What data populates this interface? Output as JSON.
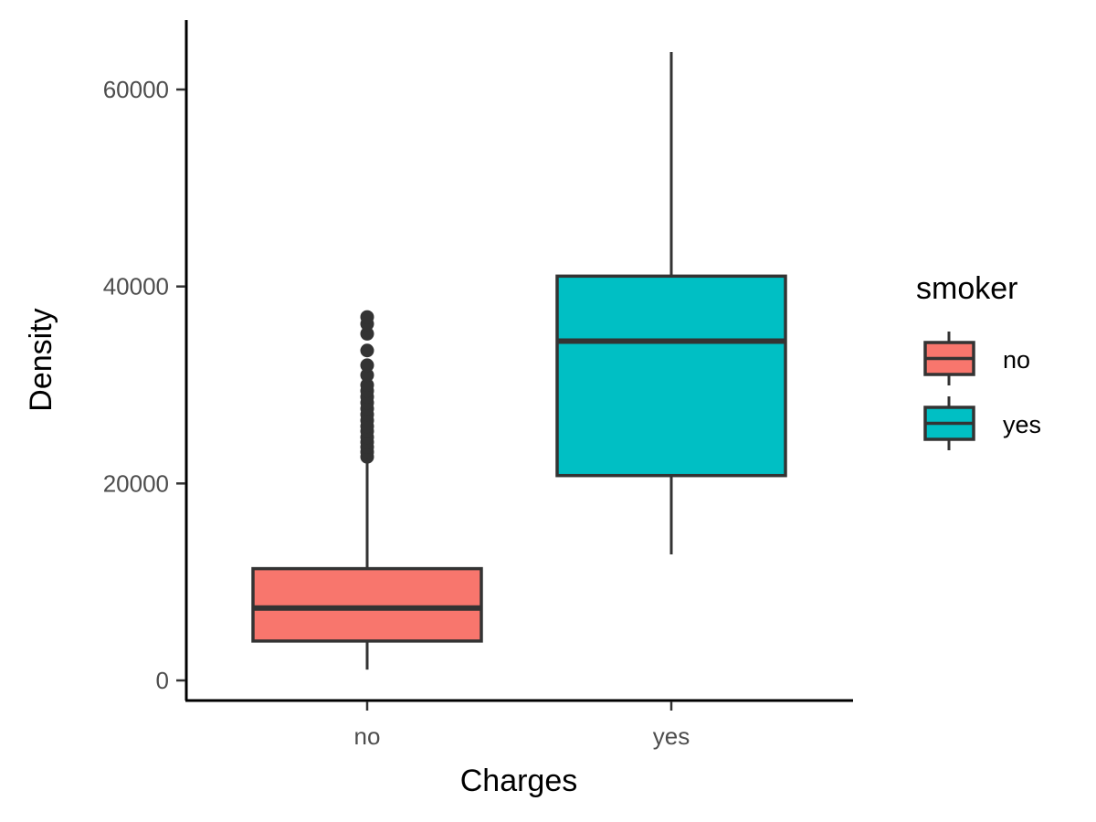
{
  "chart_data": {
    "type": "boxplot",
    "title": "",
    "xlabel": "Charges",
    "ylabel": "Density",
    "ylim": [
      -1000,
      66000
    ],
    "yticks": [
      0,
      20000,
      40000,
      60000
    ],
    "ytick_labels": [
      "0",
      "20000",
      "40000",
      "60000"
    ],
    "categories": [
      "no",
      "yes"
    ],
    "grid": false,
    "legend": {
      "title": "smoker",
      "position": "right",
      "entries": [
        {
          "label": "no",
          "color": "#F8766D"
        },
        {
          "label": "yes",
          "color": "#00BFC4"
        }
      ]
    },
    "series": [
      {
        "category": "no",
        "fill": "#F8766D",
        "whisker_low": 1100,
        "q1": 4000,
        "median": 7350,
        "q3": 11350,
        "whisker_high": 22300,
        "outliers": [
          22700,
          23200,
          23700,
          24200,
          24700,
          25300,
          25800,
          26400,
          27000,
          27600,
          28200,
          28800,
          29400,
          30000,
          31000,
          32000,
          33500,
          35200,
          36200,
          36900
        ]
      },
      {
        "category": "yes",
        "fill": "#00BFC4",
        "whisker_low": 12800,
        "q1": 20800,
        "median": 34450,
        "q3": 41050,
        "whisker_high": 63800,
        "outliers": []
      }
    ]
  }
}
